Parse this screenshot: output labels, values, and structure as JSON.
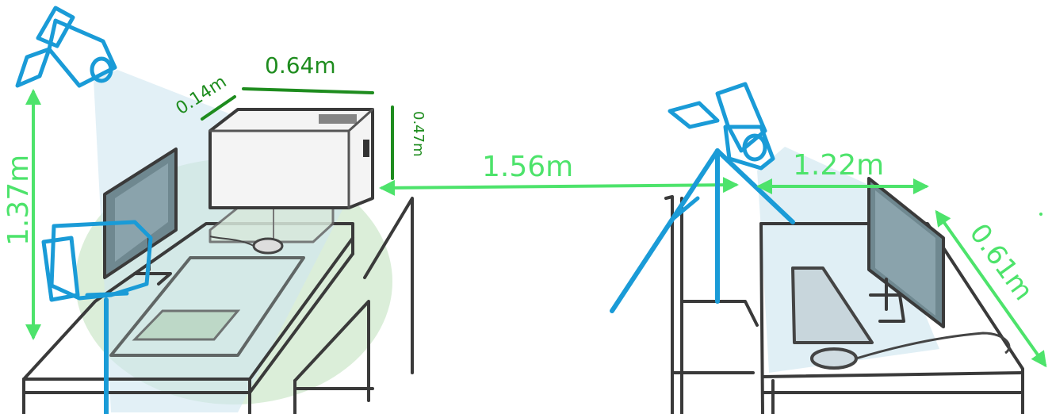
{
  "colors": {
    "camera": "#1a9bd7",
    "light_green": "#4de36b",
    "dark_green": "#1e8c1e",
    "sketch": "#3a3a3a",
    "fov_blue": "#cfe6f0",
    "fov_green": "#cfe8cc"
  },
  "measurements": {
    "camera_height": "1.37m",
    "box_width": "0.64m",
    "box_depth": "0.14m",
    "box_height": "0.47m",
    "camera_gap": "1.56m",
    "monitor_distance": "1.22m",
    "desk_diagonal": "0.61m"
  },
  "icons": [
    "camera-icon",
    "camera-icon",
    "camera-icon"
  ]
}
